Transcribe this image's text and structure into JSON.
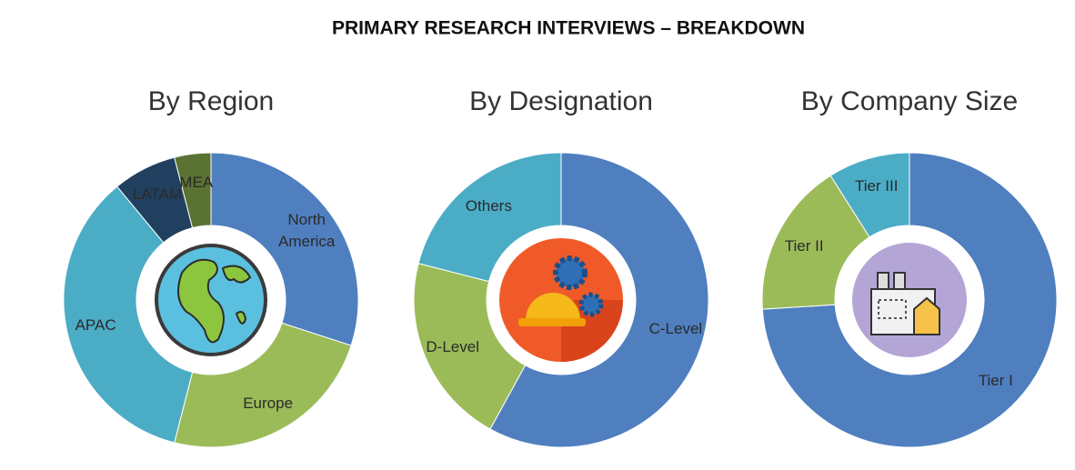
{
  "title": "PRIMARY RESEARCH INTERVIEWS – BREAKDOWN",
  "chart_data": [
    {
      "type": "donut",
      "title": "By Region",
      "categories": [
        "North America",
        "Europe",
        "APAC",
        "LATAM",
        "MEA"
      ],
      "values": [
        30,
        24,
        35,
        7,
        4
      ],
      "colors": [
        "#4f7fbf",
        "#9bbb59",
        "#4bacc6",
        "#21405f",
        "#5a7233"
      ]
    },
    {
      "type": "donut",
      "title": "By Designation",
      "categories": [
        "C-Level",
        "D-Level",
        "Others"
      ],
      "values": [
        58,
        21,
        21
      ],
      "colors": [
        "#4f7fbf",
        "#9bbb59",
        "#4bacc6"
      ]
    },
    {
      "type": "donut",
      "title": "By Company Size",
      "categories": [
        "Tier I",
        "Tier II",
        "Tier III"
      ],
      "values": [
        74,
        17,
        9
      ],
      "colors": [
        "#4f7fbf",
        "#9bbb59",
        "#4bacc6"
      ]
    }
  ]
}
